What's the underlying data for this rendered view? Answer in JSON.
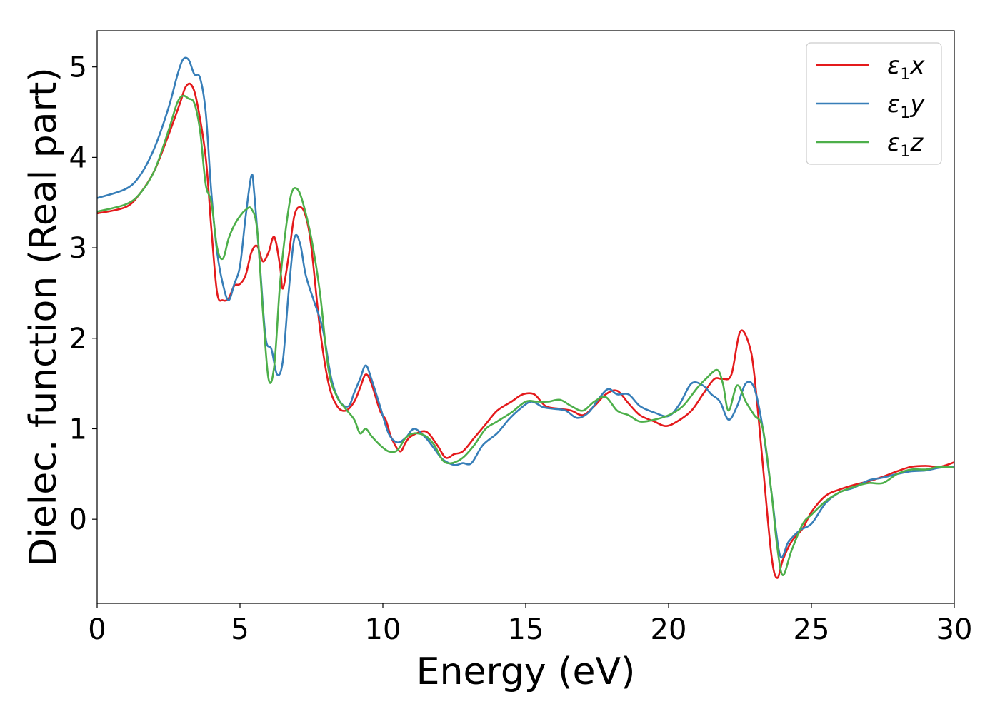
{
  "chart_data": {
    "type": "line",
    "xlabel": "Energy (eV)",
    "ylabel": "Dielec. function (Real part)",
    "xlim": [
      0,
      30
    ],
    "ylim": [
      -0.93,
      5.4
    ],
    "xticks": [
      0,
      5,
      10,
      15,
      20,
      25,
      30
    ],
    "yticks": [
      0,
      1,
      2,
      3,
      4,
      5
    ],
    "grid": false,
    "legend": "top-right",
    "series": [
      {
        "name": "ε1x",
        "symbol": "ε",
        "subscript": "1",
        "axis": "x",
        "color": "#e41a1c",
        "points": [
          [
            0,
            3.38
          ],
          [
            1,
            3.45
          ],
          [
            1.5,
            3.6
          ],
          [
            2,
            3.85
          ],
          [
            2.5,
            4.25
          ],
          [
            2.9,
            4.6
          ],
          [
            3.1,
            4.78
          ],
          [
            3.3,
            4.8
          ],
          [
            3.5,
            4.6
          ],
          [
            3.8,
            4.0
          ],
          [
            4.0,
            3.2
          ],
          [
            4.2,
            2.5
          ],
          [
            4.4,
            2.42
          ],
          [
            4.6,
            2.44
          ],
          [
            4.8,
            2.58
          ],
          [
            5.0,
            2.6
          ],
          [
            5.2,
            2.7
          ],
          [
            5.4,
            2.95
          ],
          [
            5.6,
            3.02
          ],
          [
            5.8,
            2.85
          ],
          [
            6.0,
            2.95
          ],
          [
            6.2,
            3.12
          ],
          [
            6.4,
            2.8
          ],
          [
            6.5,
            2.55
          ],
          [
            6.7,
            2.9
          ],
          [
            6.9,
            3.35
          ],
          [
            7.1,
            3.45
          ],
          [
            7.3,
            3.35
          ],
          [
            7.5,
            3.0
          ],
          [
            7.8,
            2.1
          ],
          [
            8.1,
            1.5
          ],
          [
            8.4,
            1.25
          ],
          [
            8.7,
            1.2
          ],
          [
            9.0,
            1.3
          ],
          [
            9.2,
            1.45
          ],
          [
            9.4,
            1.6
          ],
          [
            9.6,
            1.5
          ],
          [
            9.9,
            1.2
          ],
          [
            10.1,
            1.1
          ],
          [
            10.3,
            0.9
          ],
          [
            10.6,
            0.75
          ],
          [
            10.8,
            0.85
          ],
          [
            11.0,
            0.92
          ],
          [
            11.5,
            0.97
          ],
          [
            11.9,
            0.82
          ],
          [
            12.2,
            0.68
          ],
          [
            12.5,
            0.72
          ],
          [
            12.8,
            0.75
          ],
          [
            13.2,
            0.9
          ],
          [
            13.6,
            1.05
          ],
          [
            14.0,
            1.2
          ],
          [
            14.5,
            1.3
          ],
          [
            14.9,
            1.38
          ],
          [
            15.3,
            1.38
          ],
          [
            15.7,
            1.25
          ],
          [
            16.2,
            1.22
          ],
          [
            16.6,
            1.2
          ],
          [
            17.0,
            1.15
          ],
          [
            17.4,
            1.25
          ],
          [
            17.8,
            1.38
          ],
          [
            18.2,
            1.42
          ],
          [
            18.6,
            1.28
          ],
          [
            19.0,
            1.15
          ],
          [
            19.5,
            1.08
          ],
          [
            19.9,
            1.03
          ],
          [
            20.3,
            1.08
          ],
          [
            20.8,
            1.2
          ],
          [
            21.2,
            1.38
          ],
          [
            21.6,
            1.55
          ],
          [
            21.9,
            1.55
          ],
          [
            22.2,
            1.6
          ],
          [
            22.5,
            2.07
          ],
          [
            22.8,
            1.95
          ],
          [
            23.0,
            1.6
          ],
          [
            23.3,
            0.6
          ],
          [
            23.6,
            -0.4
          ],
          [
            23.8,
            -0.65
          ],
          [
            24.0,
            -0.45
          ],
          [
            24.3,
            -0.25
          ],
          [
            24.7,
            -0.1
          ],
          [
            25.0,
            0.08
          ],
          [
            25.5,
            0.26
          ],
          [
            26.0,
            0.33
          ],
          [
            26.5,
            0.38
          ],
          [
            27.0,
            0.42
          ],
          [
            27.5,
            0.47
          ],
          [
            28.0,
            0.53
          ],
          [
            28.5,
            0.58
          ],
          [
            29.0,
            0.59
          ],
          [
            29.5,
            0.58
          ],
          [
            30,
            0.63
          ]
        ]
      },
      {
        "name": "ε1y",
        "symbol": "ε",
        "subscript": "1",
        "axis": "y",
        "color": "#377eb8",
        "points": [
          [
            0,
            3.55
          ],
          [
            1,
            3.65
          ],
          [
            1.5,
            3.8
          ],
          [
            2,
            4.1
          ],
          [
            2.5,
            4.55
          ],
          [
            2.8,
            4.9
          ],
          [
            3.0,
            5.08
          ],
          [
            3.2,
            5.08
          ],
          [
            3.4,
            4.92
          ],
          [
            3.6,
            4.88
          ],
          [
            3.8,
            4.5
          ],
          [
            4.0,
            3.6
          ],
          [
            4.2,
            2.95
          ],
          [
            4.4,
            2.6
          ],
          [
            4.6,
            2.42
          ],
          [
            4.8,
            2.6
          ],
          [
            5.0,
            2.8
          ],
          [
            5.2,
            3.35
          ],
          [
            5.4,
            3.8
          ],
          [
            5.5,
            3.6
          ],
          [
            5.7,
            2.8
          ],
          [
            5.9,
            2.0
          ],
          [
            6.1,
            1.88
          ],
          [
            6.3,
            1.6
          ],
          [
            6.5,
            1.75
          ],
          [
            6.7,
            2.5
          ],
          [
            6.9,
            3.1
          ],
          [
            7.1,
            3.05
          ],
          [
            7.3,
            2.7
          ],
          [
            7.6,
            2.4
          ],
          [
            7.9,
            2.1
          ],
          [
            8.2,
            1.55
          ],
          [
            8.5,
            1.3
          ],
          [
            8.8,
            1.25
          ],
          [
            9.0,
            1.4
          ],
          [
            9.2,
            1.55
          ],
          [
            9.4,
            1.7
          ],
          [
            9.6,
            1.55
          ],
          [
            9.9,
            1.25
          ],
          [
            10.2,
            0.95
          ],
          [
            10.5,
            0.85
          ],
          [
            10.8,
            0.9
          ],
          [
            11.1,
            1.0
          ],
          [
            11.5,
            0.9
          ],
          [
            11.8,
            0.78
          ],
          [
            12.1,
            0.66
          ],
          [
            12.5,
            0.6
          ],
          [
            12.8,
            0.62
          ],
          [
            13.1,
            0.62
          ],
          [
            13.5,
            0.82
          ],
          [
            14.0,
            0.95
          ],
          [
            14.4,
            1.1
          ],
          [
            14.8,
            1.22
          ],
          [
            15.2,
            1.3
          ],
          [
            15.6,
            1.24
          ],
          [
            16.0,
            1.22
          ],
          [
            16.4,
            1.2
          ],
          [
            16.8,
            1.12
          ],
          [
            17.2,
            1.18
          ],
          [
            17.6,
            1.35
          ],
          [
            17.9,
            1.44
          ],
          [
            18.2,
            1.38
          ],
          [
            18.6,
            1.38
          ],
          [
            19.0,
            1.25
          ],
          [
            19.5,
            1.18
          ],
          [
            20.0,
            1.14
          ],
          [
            20.4,
            1.28
          ],
          [
            20.8,
            1.5
          ],
          [
            21.2,
            1.48
          ],
          [
            21.5,
            1.38
          ],
          [
            21.8,
            1.3
          ],
          [
            22.1,
            1.1
          ],
          [
            22.4,
            1.25
          ],
          [
            22.7,
            1.5
          ],
          [
            23.0,
            1.45
          ],
          [
            23.3,
            1.0
          ],
          [
            23.6,
            0.3
          ],
          [
            23.9,
            -0.4
          ],
          [
            24.2,
            -0.25
          ],
          [
            24.6,
            -0.12
          ],
          [
            25.0,
            -0.05
          ],
          [
            25.5,
            0.18
          ],
          [
            26.0,
            0.3
          ],
          [
            26.5,
            0.35
          ],
          [
            27.0,
            0.43
          ],
          [
            27.5,
            0.46
          ],
          [
            28.0,
            0.5
          ],
          [
            28.5,
            0.53
          ],
          [
            29.0,
            0.54
          ],
          [
            29.5,
            0.57
          ],
          [
            30,
            0.58
          ]
        ]
      },
      {
        "name": "ε1z",
        "symbol": "ε",
        "subscript": "1",
        "axis": "z",
        "color": "#4daf4a",
        "points": [
          [
            0,
            3.4
          ],
          [
            1,
            3.48
          ],
          [
            1.5,
            3.6
          ],
          [
            2,
            3.85
          ],
          [
            2.5,
            4.3
          ],
          [
            2.8,
            4.6
          ],
          [
            3.0,
            4.68
          ],
          [
            3.2,
            4.65
          ],
          [
            3.4,
            4.6
          ],
          [
            3.6,
            4.3
          ],
          [
            3.8,
            3.7
          ],
          [
            4.0,
            3.5
          ],
          [
            4.2,
            3.0
          ],
          [
            4.4,
            2.88
          ],
          [
            4.6,
            3.1
          ],
          [
            4.8,
            3.25
          ],
          [
            5.0,
            3.35
          ],
          [
            5.2,
            3.42
          ],
          [
            5.4,
            3.43
          ],
          [
            5.6,
            3.2
          ],
          [
            5.8,
            2.3
          ],
          [
            6.0,
            1.55
          ],
          [
            6.2,
            1.7
          ],
          [
            6.4,
            2.6
          ],
          [
            6.6,
            3.2
          ],
          [
            6.8,
            3.6
          ],
          [
            7.0,
            3.65
          ],
          [
            7.2,
            3.5
          ],
          [
            7.5,
            3.1
          ],
          [
            7.8,
            2.5
          ],
          [
            8.1,
            1.65
          ],
          [
            8.4,
            1.35
          ],
          [
            8.7,
            1.22
          ],
          [
            9.0,
            1.1
          ],
          [
            9.2,
            0.95
          ],
          [
            9.4,
            1.0
          ],
          [
            9.6,
            0.92
          ],
          [
            9.9,
            0.82
          ],
          [
            10.2,
            0.75
          ],
          [
            10.5,
            0.76
          ],
          [
            10.8,
            0.9
          ],
          [
            11.1,
            0.95
          ],
          [
            11.5,
            0.92
          ],
          [
            11.8,
            0.82
          ],
          [
            12.1,
            0.65
          ],
          [
            12.4,
            0.62
          ],
          [
            12.8,
            0.68
          ],
          [
            13.2,
            0.82
          ],
          [
            13.6,
            1.0
          ],
          [
            14.0,
            1.08
          ],
          [
            14.5,
            1.18
          ],
          [
            15.0,
            1.3
          ],
          [
            15.4,
            1.3
          ],
          [
            15.8,
            1.3
          ],
          [
            16.2,
            1.32
          ],
          [
            16.6,
            1.25
          ],
          [
            17.0,
            1.2
          ],
          [
            17.4,
            1.3
          ],
          [
            17.8,
            1.35
          ],
          [
            18.2,
            1.2
          ],
          [
            18.6,
            1.15
          ],
          [
            19.0,
            1.08
          ],
          [
            19.5,
            1.1
          ],
          [
            20.0,
            1.15
          ],
          [
            20.5,
            1.25
          ],
          [
            21.0,
            1.45
          ],
          [
            21.3,
            1.55
          ],
          [
            21.7,
            1.65
          ],
          [
            21.9,
            1.5
          ],
          [
            22.1,
            1.2
          ],
          [
            22.4,
            1.48
          ],
          [
            22.7,
            1.3
          ],
          [
            23.0,
            1.15
          ],
          [
            23.3,
            1.0
          ],
          [
            23.6,
            0.3
          ],
          [
            23.8,
            -0.3
          ],
          [
            24.0,
            -0.62
          ],
          [
            24.3,
            -0.35
          ],
          [
            24.7,
            -0.05
          ],
          [
            25.0,
            0.05
          ],
          [
            25.5,
            0.2
          ],
          [
            26.0,
            0.3
          ],
          [
            26.5,
            0.36
          ],
          [
            27.0,
            0.4
          ],
          [
            27.5,
            0.4
          ],
          [
            28.0,
            0.5
          ],
          [
            28.5,
            0.55
          ],
          [
            29.0,
            0.55
          ],
          [
            29.5,
            0.58
          ],
          [
            30,
            0.57
          ]
        ]
      }
    ]
  }
}
